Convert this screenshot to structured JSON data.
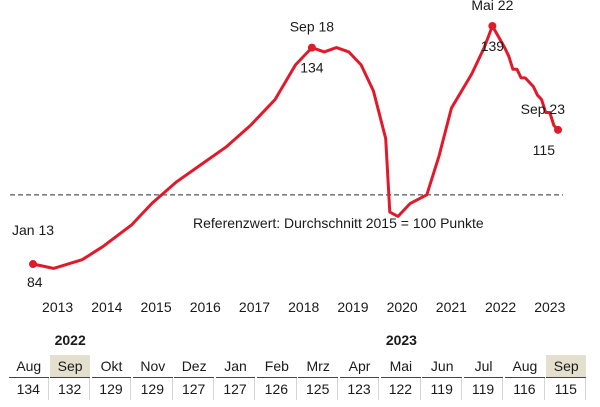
{
  "colors": {
    "line": "#e01a2b",
    "reference": "#7f7f7f",
    "highlight": "#e4e0cd"
  },
  "chart_data": {
    "type": "line",
    "x_start": "2013-01",
    "x_end": "2023-09",
    "ylim": [
      78,
      145
    ],
    "x_ticks": [
      "2013",
      "2014",
      "2015",
      "2016",
      "2017",
      "2018",
      "2019",
      "2020",
      "2021",
      "2022",
      "2023"
    ],
    "reference": {
      "value": 100,
      "label": "Referenzwert:  Durchschnitt 2015 = 100 Punkte"
    },
    "series": [
      {
        "points": [
          [
            "2013-01",
            84
          ],
          [
            "2013-06",
            83
          ],
          [
            "2014-01",
            85
          ],
          [
            "2014-06",
            88
          ],
          [
            "2015-01",
            93
          ],
          [
            "2015-06",
            98
          ],
          [
            "2015-12",
            103
          ],
          [
            "2016-06",
            107
          ],
          [
            "2016-12",
            111
          ],
          [
            "2017-06",
            116
          ],
          [
            "2017-12",
            122
          ],
          [
            "2018-05",
            130
          ],
          [
            "2018-09",
            134
          ],
          [
            "2018-12",
            133
          ],
          [
            "2019-03",
            134
          ],
          [
            "2019-06",
            133
          ],
          [
            "2019-09",
            130
          ],
          [
            "2019-12",
            124
          ],
          [
            "2020-03",
            113
          ],
          [
            "2020-04",
            96
          ],
          [
            "2020-06",
            95
          ],
          [
            "2020-09",
            98
          ],
          [
            "2021-01",
            100
          ],
          [
            "2021-04",
            109
          ],
          [
            "2021-07",
            120
          ],
          [
            "2021-12",
            128
          ],
          [
            "2022-03",
            134
          ],
          [
            "2022-05",
            139
          ],
          [
            "2022-08",
            134
          ],
          [
            "2022-09",
            132
          ],
          [
            "2022-10",
            129
          ],
          [
            "2022-11",
            129
          ],
          [
            "2022-12",
            127
          ],
          [
            "2023-01",
            127
          ],
          [
            "2023-02",
            126
          ],
          [
            "2023-03",
            125
          ],
          [
            "2023-04",
            123
          ],
          [
            "2023-05",
            122
          ],
          [
            "2023-06",
            119
          ],
          [
            "2023-07",
            119
          ],
          [
            "2023-08",
            116
          ],
          [
            "2023-09",
            115
          ]
        ]
      }
    ],
    "annotations": [
      {
        "x": "2013-01",
        "y": 84,
        "label_top": "Jan 13",
        "label_bottom": "84"
      },
      {
        "x": "2018-09",
        "y": 134,
        "label_top": "Sep 18",
        "label_bottom": "134"
      },
      {
        "x": "2022-05",
        "y": 139,
        "label_top": "Mai 22",
        "label_bottom": "139"
      },
      {
        "x": "2023-09",
        "y": 115,
        "label_top": "Sep 23",
        "label_bottom": "115"
      }
    ]
  },
  "table": {
    "years": [
      {
        "label": "2022",
        "col": 1
      },
      {
        "label": "2023",
        "col": 9
      }
    ],
    "columns": [
      {
        "month": "Aug",
        "value": "134"
      },
      {
        "month": "Sep",
        "value": "132",
        "highlight": true
      },
      {
        "month": "Okt",
        "value": "129"
      },
      {
        "month": "Nov",
        "value": "129"
      },
      {
        "month": "Dez",
        "value": "127"
      },
      {
        "month": "Jan",
        "value": "127"
      },
      {
        "month": "Feb",
        "value": "126"
      },
      {
        "month": "Mrz",
        "value": "125"
      },
      {
        "month": "Apr",
        "value": "123"
      },
      {
        "month": "Mai",
        "value": "122"
      },
      {
        "month": "Jun",
        "value": "119"
      },
      {
        "month": "Jul",
        "value": "119"
      },
      {
        "month": "Aug",
        "value": "116"
      },
      {
        "month": "Sep",
        "value": "115",
        "highlight": true
      }
    ]
  }
}
